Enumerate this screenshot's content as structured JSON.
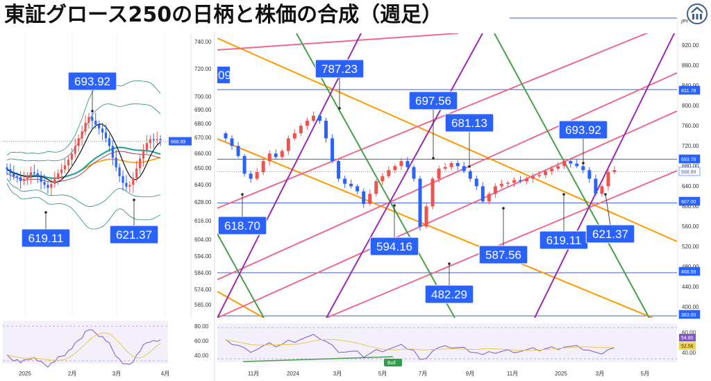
{
  "title": "東証グロース250の日柄と株価の合成（週足）",
  "currency": "JPY",
  "colors": {
    "up": "#ef5350",
    "down": "#2962ff",
    "callout": "#2962ff",
    "hline": "#3a5bd9",
    "orange": "#ff9800",
    "pink": "#ec6a8c",
    "green": "#43a047",
    "purple": "#9c27b0",
    "teal": "#26a69a",
    "bb": "#1e8c7a"
  },
  "chart_data": [
    {
      "type": "candlestick",
      "panel": "left-daily",
      "x_tick_labels": [
        "2025",
        "2月",
        "3月",
        "4月"
      ],
      "y_tick_labels": [
        "740.00",
        "720.00",
        "700.00",
        "690.00",
        "680.00",
        "670.00",
        "660.00",
        "650.00",
        "640.00",
        "628.00",
        "616.00",
        "604.00",
        "594.00",
        "584.00",
        "574.00",
        "565.00"
      ],
      "price_label": "668.89",
      "callouts": [
        {
          "label": "693.92"
        },
        {
          "label": "619.11"
        },
        {
          "label": "621.37"
        }
      ],
      "close_series": [
        640,
        636,
        633,
        632,
        628,
        630,
        633,
        637,
        636,
        632,
        627,
        624,
        621,
        625,
        630,
        636,
        640,
        644,
        650,
        656,
        664,
        672,
        679,
        688,
        694,
        690,
        686,
        682,
        678,
        672,
        664,
        652,
        642,
        633,
        626,
        622,
        624,
        631,
        641,
        651,
        660,
        667,
        671,
        670,
        671,
        670
      ],
      "oscillator": {
        "ticks": [
          "80.00",
          "60.00",
          "40.00"
        ]
      }
    },
    {
      "type": "candlestick",
      "panel": "right-weekly",
      "x_tick_labels": [
        "11月",
        "2024",
        "3月",
        "5月",
        "7月",
        "9月",
        "11月",
        "2025",
        "3月",
        "5月"
      ],
      "y_tick_labels": [
        "920.00",
        "880.00",
        "840.00",
        "800.00",
        "760.00",
        "720.00",
        "680.00",
        "640.00",
        "600.00",
        "560.00",
        "520.00",
        "480.00",
        "440.00",
        "400.00"
      ],
      "level_labels": [
        "831.78",
        "693.78",
        "668.89",
        "607.00",
        "468.59",
        "383.00"
      ],
      "levels": [
        831.78,
        693.78,
        607.0,
        468.59,
        383.0
      ],
      "callouts": [
        {
          "label": "787.23"
        },
        {
          "label": "697.56"
        },
        {
          "label": "681.13"
        },
        {
          "label": "693.92"
        },
        {
          "label": "618.70"
        },
        {
          "label": "594.16"
        },
        {
          "label": "482.29"
        },
        {
          "label": "587.56"
        },
        {
          "label": "619.11"
        },
        {
          "label": "621.37"
        },
        {
          "label": "09"
        }
      ],
      "close_series": [
        735,
        720,
        700,
        665,
        655,
        668,
        690,
        705,
        698,
        710,
        735,
        745,
        760,
        770,
        780,
        770,
        735,
        690,
        655,
        645,
        640,
        630,
        605,
        625,
        650,
        660,
        672,
        680,
        690,
        678,
        655,
        560,
        600,
        655,
        675,
        678,
        686,
        680,
        670,
        655,
        640,
        610,
        625,
        640,
        645,
        647,
        652,
        650,
        655,
        660,
        662,
        670,
        675,
        680,
        690,
        685,
        680,
        672,
        655,
        625,
        640,
        668,
        672
      ],
      "oscillator": {
        "ticks": [
          "60.00",
          "40.00"
        ],
        "value_labels": [
          "54.80",
          "52.56"
        ],
        "marker": "Bull"
      }
    }
  ]
}
